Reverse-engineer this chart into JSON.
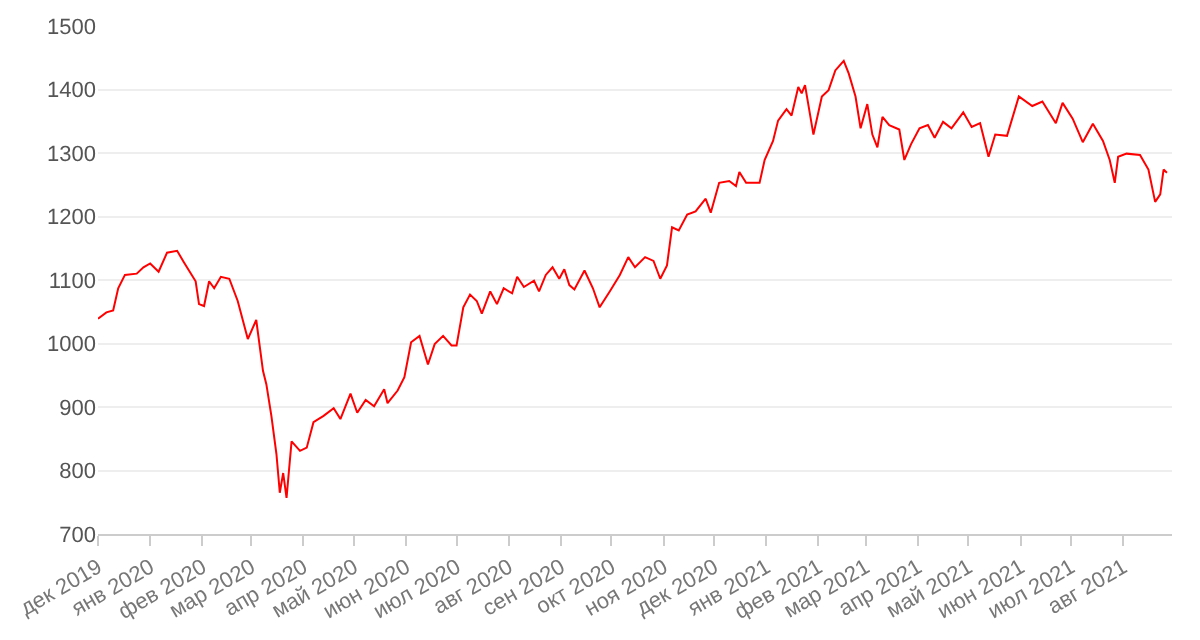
{
  "chart_data": {
    "type": "line",
    "grid": "y",
    "legend": false,
    "marker": "none",
    "line_style": "solid",
    "xlim": [
      "2019-12-01",
      "2021-08-30"
    ],
    "xticks": [
      {
        "value": "2019-12-01",
        "label": "дек 2019"
      },
      {
        "value": "2020-01-01",
        "label": "янв 2020"
      },
      {
        "value": "2020-02-01",
        "label": "фев 2020"
      },
      {
        "value": "2020-03-01",
        "label": "мар 2020"
      },
      {
        "value": "2020-04-01",
        "label": "апр 2020"
      },
      {
        "value": "2020-05-01",
        "label": "май 2020"
      },
      {
        "value": "2020-06-01",
        "label": "июн 2020"
      },
      {
        "value": "2020-07-01",
        "label": "июл 2020"
      },
      {
        "value": "2020-08-01",
        "label": "авг 2020"
      },
      {
        "value": "2020-09-01",
        "label": "сен 2020"
      },
      {
        "value": "2020-10-01",
        "label": "окт 2020"
      },
      {
        "value": "2020-11-01",
        "label": "ноя 2020"
      },
      {
        "value": "2020-12-01",
        "label": "дек 2020"
      },
      {
        "value": "2021-01-01",
        "label": "янв 2021"
      },
      {
        "value": "2021-02-01",
        "label": "фев 2021"
      },
      {
        "value": "2021-03-01",
        "label": "мар 2021"
      },
      {
        "value": "2021-04-01",
        "label": "апр 2021"
      },
      {
        "value": "2021-05-01",
        "label": "май 2021"
      },
      {
        "value": "2021-06-01",
        "label": "июн 2021"
      },
      {
        "value": "2021-07-01",
        "label": "июл 2021"
      },
      {
        "value": "2021-08-01",
        "label": "авг 2021"
      }
    ],
    "ylim": [
      700,
      1500
    ],
    "yticks": [
      700,
      800,
      900,
      1000,
      1100,
      1200,
      1300,
      1400,
      1500
    ],
    "x": [
      "2019-12-01",
      "2019-12-06",
      "2019-12-10",
      "2019-12-13",
      "2019-12-17",
      "2019-12-24",
      "2019-12-28",
      "2020-01-01",
      "2020-01-06",
      "2020-01-11",
      "2020-01-17",
      "2020-01-21",
      "2020-01-28",
      "2020-01-30",
      "2020-02-02",
      "2020-02-05",
      "2020-02-08",
      "2020-02-12",
      "2020-02-17",
      "2020-02-22",
      "2020-02-28",
      "2020-03-04",
      "2020-03-08",
      "2020-03-10",
      "2020-03-13",
      "2020-03-16",
      "2020-03-18",
      "2020-03-20",
      "2020-03-22",
      "2020-03-25",
      "2020-03-30",
      "2020-04-03",
      "2020-04-07",
      "2020-04-13",
      "2020-04-19",
      "2020-04-23",
      "2020-04-29",
      "2020-05-03",
      "2020-05-08",
      "2020-05-13",
      "2020-05-19",
      "2020-05-21",
      "2020-05-27",
      "2020-05-31",
      "2020-06-04",
      "2020-06-09",
      "2020-06-14",
      "2020-06-18",
      "2020-06-23",
      "2020-06-28",
      "2020-07-01",
      "2020-07-05",
      "2020-07-09",
      "2020-07-13",
      "2020-07-16",
      "2020-07-21",
      "2020-07-25",
      "2020-07-29",
      "2020-08-03",
      "2020-08-06",
      "2020-08-10",
      "2020-08-16",
      "2020-08-19",
      "2020-08-23",
      "2020-08-27",
      "2020-08-31",
      "2020-09-03",
      "2020-09-06",
      "2020-09-09",
      "2020-09-15",
      "2020-09-20",
      "2020-09-24",
      "2020-09-30",
      "2020-10-06",
      "2020-10-11",
      "2020-10-15",
      "2020-10-21",
      "2020-10-26",
      "2020-10-30",
      "2020-11-03",
      "2020-11-06",
      "2020-11-10",
      "2020-11-15",
      "2020-11-20",
      "2020-11-26",
      "2020-11-29",
      "2020-12-04",
      "2020-12-10",
      "2020-12-14",
      "2020-12-16",
      "2020-12-20",
      "2020-12-28",
      "2020-12-31",
      "2021-01-05",
      "2021-01-08",
      "2021-01-13",
      "2021-01-16",
      "2021-01-20",
      "2021-01-22",
      "2021-01-24",
      "2021-01-29",
      "2021-02-03",
      "2021-02-07",
      "2021-02-11",
      "2021-02-16",
      "2021-02-19",
      "2021-02-23",
      "2021-02-26",
      "2021-03-02",
      "2021-03-05",
      "2021-03-08",
      "2021-03-11",
      "2021-03-15",
      "2021-03-21",
      "2021-03-24",
      "2021-03-28",
      "2021-04-02",
      "2021-04-07",
      "2021-04-11",
      "2021-04-16",
      "2021-04-21",
      "2021-04-28",
      "2021-05-03",
      "2021-05-08",
      "2021-05-13",
      "2021-05-17",
      "2021-05-24",
      "2021-05-31",
      "2021-06-08",
      "2021-06-14",
      "2021-06-22",
      "2021-06-26",
      "2021-07-02",
      "2021-07-08",
      "2021-07-14",
      "2021-07-20",
      "2021-07-24",
      "2021-07-27",
      "2021-07-29",
      "2021-08-03",
      "2021-08-11",
      "2021-08-16",
      "2021-08-20",
      "2021-08-23",
      "2021-08-25",
      "2021-08-27"
    ],
    "series": [
      {
        "color": "#ff0000",
        "values": [
          1039,
          1049,
          1052,
          1087,
          1108,
          1110,
          1120,
          1126,
          1113,
          1143,
          1146,
          1128,
          1098,
          1062,
          1059,
          1098,
          1087,
          1105,
          1102,
          1067,
          1007,
          1037,
          957,
          936,
          886,
          826,
          765,
          796,
          757,
          846,
          831,
          836,
          876,
          886,
          898,
          881,
          921,
          891,
          911,
          901,
          928,
          906,
          926,
          947,
          1002,
          1012,
          967,
          999,
          1012,
          997,
          997,
          1057,
          1077,
          1067,
          1047,
          1082,
          1062,
          1087,
          1079,
          1105,
          1089,
          1099,
          1082,
          1108,
          1120,
          1102,
          1117,
          1092,
          1085,
          1115,
          1087,
          1057,
          1082,
          1108,
          1136,
          1120,
          1136,
          1130,
          1102,
          1123,
          1183,
          1178,
          1203,
          1208,
          1228,
          1206,
          1253,
          1256,
          1248,
          1270,
          1253,
          1253,
          1289,
          1319,
          1351,
          1369,
          1359,
          1404,
          1394,
          1407,
          1329,
          1389,
          1399,
          1430,
          1445,
          1425,
          1389,
          1339,
          1377,
          1329,
          1309,
          1357,
          1344,
          1337,
          1289,
          1314,
          1339,
          1344,
          1324,
          1349,
          1339,
          1364,
          1341,
          1347,
          1294,
          1329,
          1327,
          1389,
          1374,
          1381,
          1347,
          1379,
          1354,
          1317,
          1346,
          1319,
          1289,
          1253,
          1294,
          1299,
          1297,
          1274,
          1223,
          1235,
          1274,
          1269
        ]
      }
    ]
  }
}
